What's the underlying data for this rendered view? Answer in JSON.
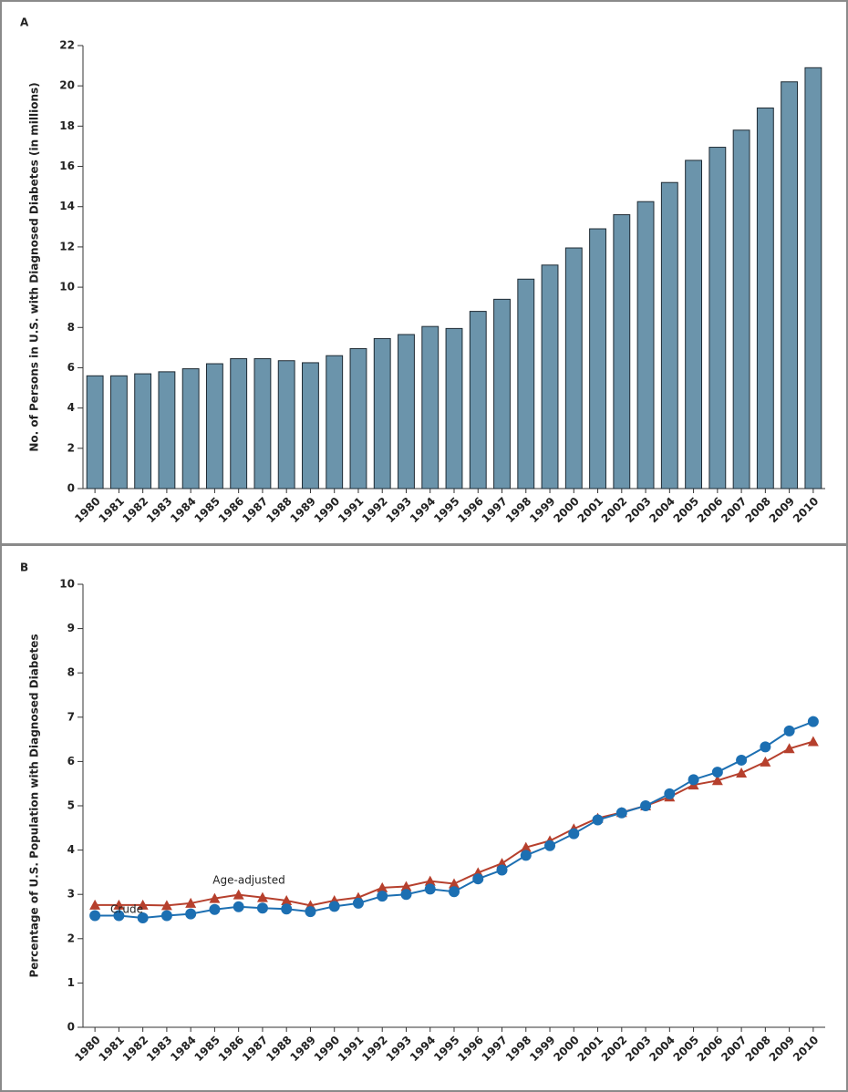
{
  "chart_data": [
    {
      "type": "bar",
      "label": "A",
      "y_label": "No. of Persons in U.S. with Diagnosed Diabetes (in millions)",
      "categories": [
        "1980",
        "1981",
        "1982",
        "1983",
        "1984",
        "1985",
        "1986",
        "1987",
        "1988",
        "1989",
        "1990",
        "1991",
        "1992",
        "1993",
        "1994",
        "1995",
        "1996",
        "1997",
        "1998",
        "1999",
        "2000",
        "2001",
        "2002",
        "2003",
        "2004",
        "2005",
        "2006",
        "2007",
        "2008",
        "2009",
        "2010"
      ],
      "values": [
        5.6,
        5.6,
        5.7,
        5.8,
        5.95,
        6.2,
        6.45,
        6.45,
        6.35,
        6.25,
        6.6,
        6.95,
        7.45,
        7.65,
        8.05,
        7.95,
        8.8,
        9.4,
        10.4,
        11.1,
        11.95,
        12.9,
        13.6,
        14.25,
        15.2,
        16.3,
        16.95,
        17.8,
        18.9,
        20.2,
        20.9
      ],
      "color": "#6b94ab",
      "ylim": [
        0,
        22
      ],
      "yticks": [
        0,
        2,
        4,
        6,
        8,
        10,
        12,
        14,
        16,
        18,
        20,
        22
      ]
    },
    {
      "type": "line",
      "label": "B",
      "y_label": "Percentage of U.S. Population with Diagnosed Diabetes",
      "categories": [
        "1980",
        "1981",
        "1982",
        "1983",
        "1984",
        "1985",
        "1986",
        "1987",
        "1988",
        "1989",
        "1990",
        "1991",
        "1992",
        "1993",
        "1994",
        "1995",
        "1996",
        "1997",
        "1998",
        "1999",
        "2000",
        "2001",
        "2002",
        "2003",
        "2004",
        "2005",
        "2006",
        "2007",
        "2008",
        "2009",
        "2010"
      ],
      "series": [
        {
          "name": "Age-adjusted",
          "color": "#b6402d",
          "marker": "triangle",
          "values": [
            2.76,
            2.76,
            2.76,
            2.75,
            2.8,
            2.91,
            2.99,
            2.93,
            2.86,
            2.75,
            2.86,
            2.93,
            3.15,
            3.18,
            3.3,
            3.24,
            3.49,
            3.7,
            4.06,
            4.21,
            4.48,
            4.72,
            4.85,
            5.0,
            5.2,
            5.47,
            5.57,
            5.74,
            5.99,
            6.29,
            6.45
          ]
        },
        {
          "name": "Crude",
          "color": "#1c6fb2",
          "marker": "circle",
          "values": [
            2.52,
            2.52,
            2.47,
            2.52,
            2.56,
            2.66,
            2.72,
            2.69,
            2.67,
            2.61,
            2.73,
            2.8,
            2.96,
            3.0,
            3.12,
            3.06,
            3.35,
            3.55,
            3.88,
            4.1,
            4.37,
            4.68,
            4.84,
            5.0,
            5.27,
            5.59,
            5.76,
            6.03,
            6.33,
            6.69,
            6.9
          ]
        }
      ],
      "ylim": [
        0,
        10
      ],
      "yticks": [
        0,
        1,
        2,
        3,
        4,
        5,
        6,
        7,
        8,
        9,
        10
      ]
    }
  ]
}
